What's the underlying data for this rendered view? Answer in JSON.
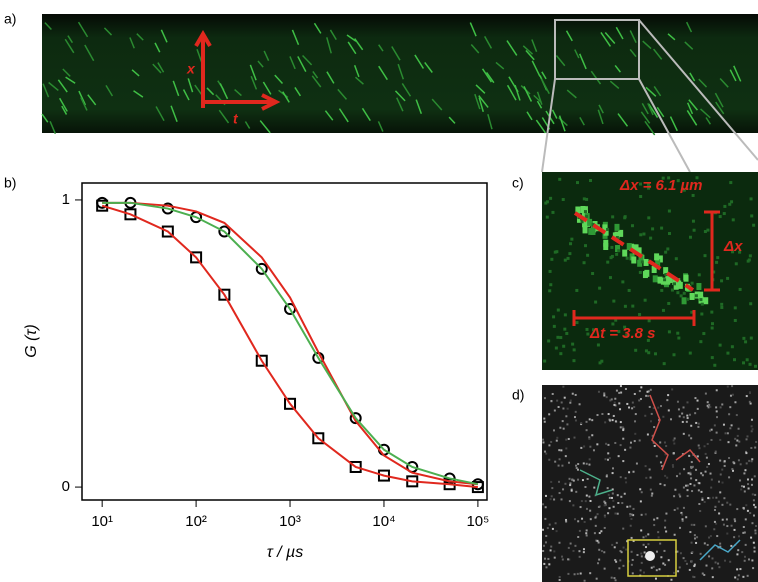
{
  "panel_labels": [
    "a)",
    "b)",
    "c)",
    "d)"
  ],
  "panel_a": {
    "axis_labels": [
      "x",
      "t"
    ]
  },
  "panel_c": {
    "annotations": [
      "Δx = 6.1 µm",
      "Δx",
      "Δt = 3.8 s"
    ]
  },
  "chart_data": {
    "type": "line",
    "xlabel": "τ / µs",
    "ylabel": "G (τ)",
    "xscale": "log",
    "xlim": [
      6.1,
      125000
    ],
    "ylim": [
      -0.045,
      1.059
    ],
    "xticks": [
      {
        "value": 10,
        "label": "10¹"
      },
      {
        "value": 100,
        "label": "10²"
      },
      {
        "value": 1000,
        "label": "10³"
      },
      {
        "value": 10000,
        "label": "10⁴"
      },
      {
        "value": 100000,
        "label": "10⁵"
      }
    ],
    "yticks": [
      0,
      1
    ],
    "x": [
      10,
      20,
      50,
      100,
      200,
      500,
      1000,
      2000,
      5000,
      10000,
      20000,
      50000,
      100000
    ],
    "series": [
      {
        "color": "#000000",
        "marker": "square",
        "values": [
          0.98,
          0.95,
          0.89,
          0.8,
          0.67,
          0.44,
          0.29,
          0.17,
          0.07,
          0.04,
          0.02,
          0.01,
          0.0
        ]
      },
      {
        "color": "#000000",
        "marker": "circle",
        "values": [
          0.99,
          0.99,
          0.97,
          0.94,
          0.89,
          0.76,
          0.62,
          0.45,
          0.24,
          0.13,
          0.07,
          0.03,
          0.01
        ]
      },
      {
        "color": "#e0281e",
        "values": [
          0.98,
          0.95,
          0.89,
          0.8,
          0.67,
          0.44,
          0.29,
          0.17,
          0.07,
          0.04,
          0.02,
          0.01,
          0.0
        ]
      },
      {
        "color": "#e0281e",
        "values": [
          0.99,
          0.99,
          0.98,
          0.96,
          0.92,
          0.8,
          0.66,
          0.47,
          0.23,
          0.11,
          0.05,
          0.02,
          0.01
        ]
      },
      {
        "color": "#4caf50",
        "values": [
          0.99,
          0.99,
          0.97,
          0.94,
          0.89,
          0.76,
          0.62,
          0.45,
          0.24,
          0.13,
          0.07,
          0.03,
          0.01
        ]
      }
    ]
  }
}
